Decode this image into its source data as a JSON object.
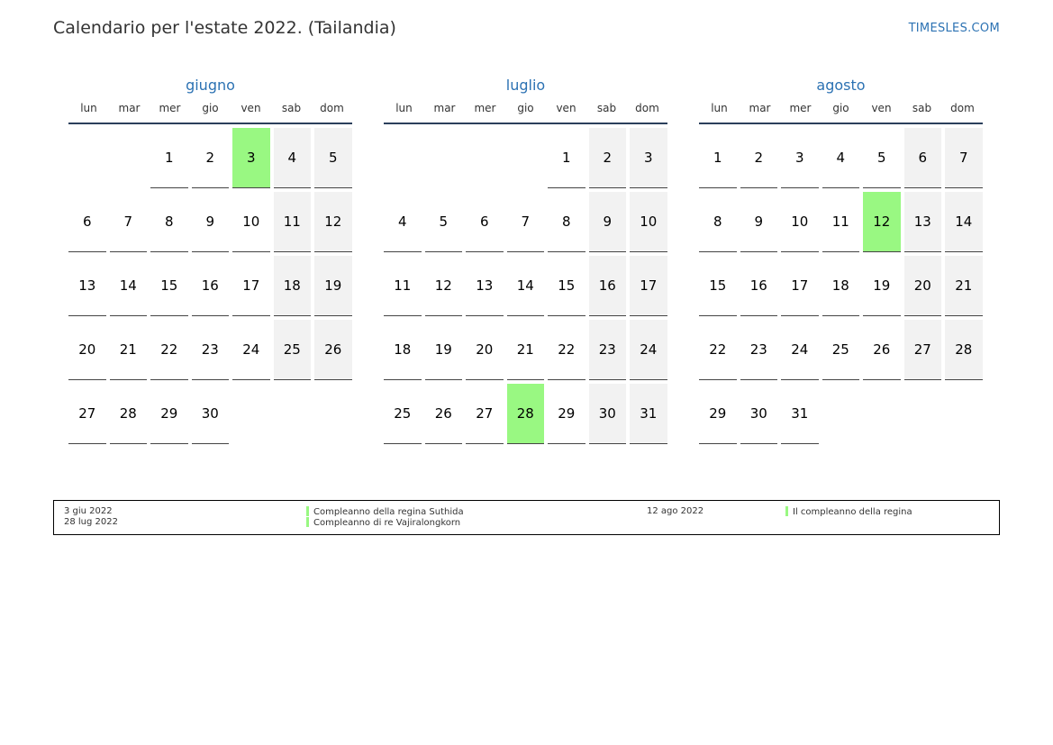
{
  "header": {
    "title": "Calendario per l'estate 2022. (Tailandia)",
    "site": "TIMESLES.COM"
  },
  "colors": {
    "accent": "#2c72b3",
    "holiday": "#99f882",
    "weekend": "#f2f2f2"
  },
  "weekdays": [
    "lun",
    "mar",
    "mer",
    "gio",
    "ven",
    "sab",
    "dom"
  ],
  "months": [
    {
      "name": "giugno",
      "start_offset": 2,
      "days": 30,
      "holidays": [
        3
      ]
    },
    {
      "name": "luglio",
      "start_offset": 4,
      "days": 31,
      "holidays": [
        28
      ]
    },
    {
      "name": "agosto",
      "start_offset": 0,
      "days": 31,
      "holidays": [
        12
      ]
    }
  ],
  "legend": {
    "col1": [
      "3 giu 2022",
      "28 lug 2022"
    ],
    "col2": [
      "Compleanno della regina Suthida",
      "Compleanno di re Vajiralongkorn"
    ],
    "col3": [
      "12 ago 2022"
    ],
    "col4": [
      "Il compleanno della regina"
    ]
  }
}
